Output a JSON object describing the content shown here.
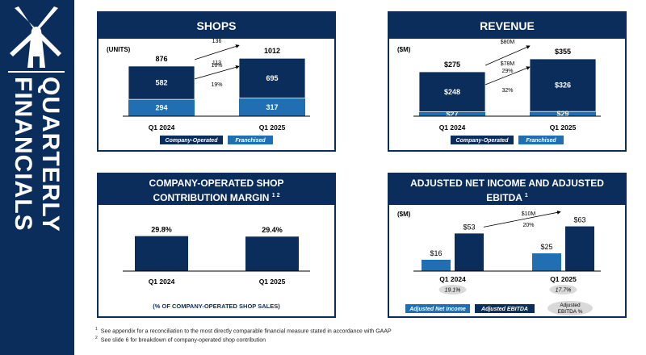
{
  "sidebar": {
    "title": "QUARTERLY FINANCIALS",
    "logo_icon": "windmill-icon"
  },
  "colors": {
    "navy": "#0b2d5b",
    "blue": "#1f6fb2",
    "pill": "#d9d9d9"
  },
  "footnotes": [
    {
      "num": "1",
      "text": "See appendix for a reconciliation to the most directly comparable financial measure stated in accordance with GAAP"
    },
    {
      "num": "2",
      "text": "See slide 6 for breakdown of company-operated shop contribution"
    }
  ],
  "chart_data": [
    {
      "id": "shops",
      "type": "bar",
      "stacked": true,
      "title": "SHOPS",
      "unit_label": "(UNITS)",
      "categories": [
        "Q1 2024",
        "Q1 2025"
      ],
      "series": [
        {
          "name": "Franchised",
          "values": [
            294,
            317
          ],
          "labels": [
            "294",
            "317"
          ]
        },
        {
          "name": "Company-Operated",
          "values": [
            582,
            695
          ],
          "labels": [
            "582",
            "695"
          ]
        }
      ],
      "totals": [
        876,
        1012
      ],
      "total_labels": [
        "876",
        "1012"
      ],
      "ylim": [
        0,
        1100
      ],
      "growth_annotations": [
        {
          "value": "136",
          "pct": "16%"
        },
        {
          "value": "113",
          "pct": "19%"
        }
      ],
      "legend": [
        "Company-Operated",
        "Franchised"
      ]
    },
    {
      "id": "revenue",
      "type": "bar",
      "stacked": true,
      "title": "REVENUE",
      "unit_label": "($M)",
      "categories": [
        "Q1 2024",
        "Q1 2025"
      ],
      "series": [
        {
          "name": "Franchised",
          "values": [
            27,
            29
          ],
          "labels": [
            "$27",
            "$29"
          ]
        },
        {
          "name": "Company-Operated",
          "values": [
            248,
            326
          ],
          "labels": [
            "$248",
            "$326"
          ]
        }
      ],
      "totals": [
        275,
        355
      ],
      "total_labels": [
        "$275",
        "$355"
      ],
      "ylim": [
        0,
        390
      ],
      "growth_annotations": [
        {
          "value": "$80M",
          "pct": "29%"
        },
        {
          "value": "$78M",
          "pct": "32%"
        }
      ],
      "legend": [
        "Company-Operated",
        "Franchised"
      ]
    },
    {
      "id": "margin",
      "type": "bar",
      "title_lines": [
        "COMPANY-OPERATED SHOP",
        "CONTRIBUTION MARGIN"
      ],
      "title_sup": "1 2",
      "categories": [
        "Q1 2024",
        "Q1 2025"
      ],
      "values": [
        29.8,
        29.4
      ],
      "labels": [
        "29.8%",
        "29.4%"
      ],
      "ylim": [
        0,
        55
      ],
      "caption": "(% OF COMPANY-OPERATED SHOP SALES)"
    },
    {
      "id": "income",
      "type": "bar",
      "title_lines": [
        "ADJUSTED NET INCOME AND ADJUSTED",
        "EBITDA"
      ],
      "title_sup": "1",
      "unit_label": "($M)",
      "categories": [
        "Q1 2024",
        "Q1 2025"
      ],
      "series": [
        {
          "name": "Adjusted Net Income",
          "values": [
            16,
            25
          ],
          "labels": [
            "$16",
            "$25"
          ]
        },
        {
          "name": "Adjusted EBITDA",
          "values": [
            53,
            63
          ],
          "labels": [
            "$53",
            "$63"
          ]
        }
      ],
      "ebitda_margin": [
        "19.1%",
        "17.7%"
      ],
      "ylim": [
        0,
        75
      ],
      "growth_annotations": [
        {
          "value": "$10M",
          "pct": "20%"
        }
      ],
      "legend": [
        "Adjusted Net Income",
        "Adjusted EBITDA",
        "Adjusted EBITDA %"
      ]
    }
  ]
}
